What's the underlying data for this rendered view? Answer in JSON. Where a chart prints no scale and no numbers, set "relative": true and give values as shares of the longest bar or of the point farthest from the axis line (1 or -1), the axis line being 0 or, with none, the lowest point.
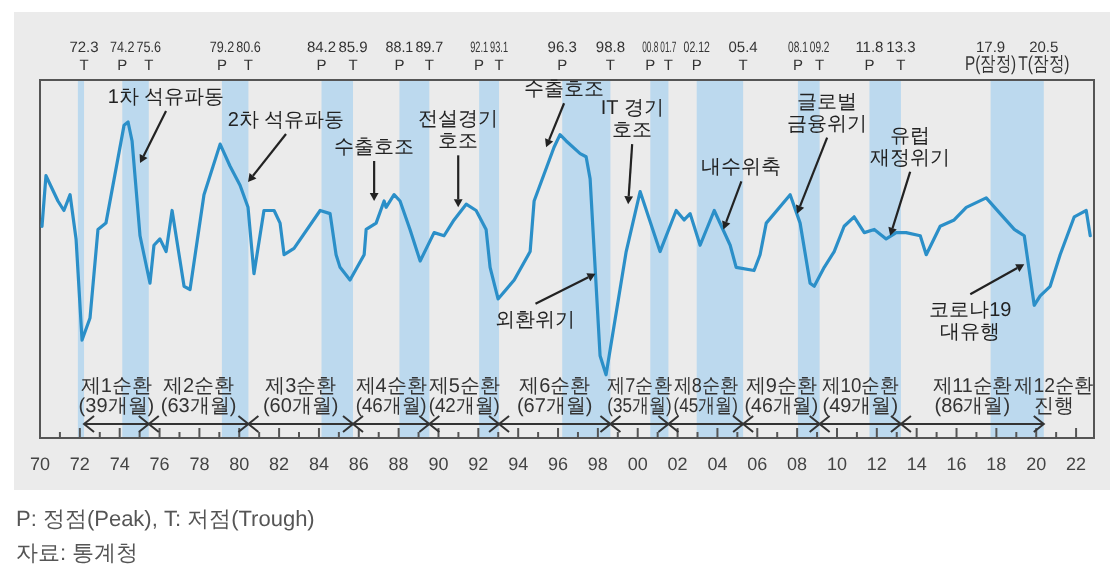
{
  "chart_data": {
    "type": "line",
    "relative": true,
    "xlim": [
      1970,
      2022.9
    ],
    "xticks": [
      {
        "value": 1970,
        "label": "70"
      },
      {
        "value": 1971,
        "label": null
      },
      {
        "value": 1972,
        "label": "72"
      },
      {
        "value": 1973,
        "label": null
      },
      {
        "value": 1974,
        "label": "74"
      },
      {
        "value": 1975,
        "label": null
      },
      {
        "value": 1976,
        "label": "76"
      },
      {
        "value": 1977,
        "label": null
      },
      {
        "value": 1978,
        "label": "78"
      },
      {
        "value": 1979,
        "label": null
      },
      {
        "value": 1980,
        "label": "80"
      },
      {
        "value": 1981,
        "label": null
      },
      {
        "value": 1982,
        "label": "82"
      },
      {
        "value": 1983,
        "label": null
      },
      {
        "value": 1984,
        "label": "84"
      },
      {
        "value": 1985,
        "label": null
      },
      {
        "value": 1986,
        "label": "86"
      },
      {
        "value": 1987,
        "label": null
      },
      {
        "value": 1988,
        "label": "88"
      },
      {
        "value": 1989,
        "label": null
      },
      {
        "value": 1990,
        "label": "90"
      },
      {
        "value": 1991,
        "label": null
      },
      {
        "value": 1992,
        "label": "92"
      },
      {
        "value": 1993,
        "label": null
      },
      {
        "value": 1994,
        "label": "94"
      },
      {
        "value": 1995,
        "label": null
      },
      {
        "value": 1996,
        "label": "96"
      },
      {
        "value": 1997,
        "label": null
      },
      {
        "value": 1998,
        "label": "98"
      },
      {
        "value": 1999,
        "label": null
      },
      {
        "value": 2000,
        "label": "00"
      },
      {
        "value": 2001,
        "label": null
      },
      {
        "value": 2002,
        "label": "02"
      },
      {
        "value": 2003,
        "label": null
      },
      {
        "value": 2004,
        "label": "04"
      },
      {
        "value": 2005,
        "label": null
      },
      {
        "value": 2006,
        "label": "06"
      },
      {
        "value": 2007,
        "label": null
      },
      {
        "value": 2008,
        "label": "08"
      },
      {
        "value": 2009,
        "label": null
      },
      {
        "value": 2010,
        "label": "10"
      },
      {
        "value": 2011,
        "label": null
      },
      {
        "value": 2012,
        "label": "12"
      },
      {
        "value": 2013,
        "label": null
      },
      {
        "value": 2014,
        "label": "14"
      },
      {
        "value": 2015,
        "label": null
      },
      {
        "value": 2016,
        "label": "16"
      },
      {
        "value": 2017,
        "label": null
      },
      {
        "value": 2018,
        "label": "18"
      },
      {
        "value": 2019,
        "label": null
      },
      {
        "value": 2020,
        "label": "20"
      },
      {
        "value": 2021,
        "label": null
      },
      {
        "value": 2022,
        "label": "22"
      }
    ],
    "x": [
      1970.1,
      1970.3,
      1970.9,
      1971.2,
      1971.51,
      1971.81,
      1972.11,
      1972.51,
      1972.91,
      1973.31,
      1974.22,
      1974.42,
      1974.62,
      1975.02,
      1975.22,
      1975.52,
      1975.72,
      1976.02,
      1976.33,
      1976.63,
      1977.23,
      1977.53,
      1978.23,
      1979.04,
      1979.54,
      1980.04,
      1980.44,
      1980.74,
      1981.24,
      1981.75,
      1982.05,
      1982.25,
      1982.75,
      1984.06,
      1984.56,
      1984.86,
      1985.06,
      1985.56,
      1986.27,
      1986.37,
      1986.87,
      1987.27,
      1987.37,
      1987.77,
      1988.07,
      1988.57,
      1989.08,
      1989.78,
      1990.28,
      1990.78,
      1991.39,
      1991.89,
      1992.39,
      1992.59,
      1992.99,
      1993.8,
      1994.6,
      1994.8,
      1995.8,
      1996.1,
      1996.41,
      1997.11,
      1997.41,
      1997.61,
      1998.11,
      1998.41,
      1999.42,
      2000.12,
      2001.12,
      2001.93,
      2002.33,
      2002.63,
      2003.13,
      2003.84,
      2004.64,
      2004.94,
      2005.84,
      2006.14,
      2006.45,
      2007.65,
      2008.15,
      2008.65,
      2008.86,
      2009.36,
      2009.86,
      2010.36,
      2010.86,
      2011.37,
      2011.87,
      2012.47,
      2012.97,
      2013.47,
      2014.18,
      2014.48,
      2015.18,
      2015.88,
      2016.49,
      2017.49,
      2018.19,
      2018.9,
      2019.4,
      2019.9,
      2020.2,
      2020.7,
      2021.2,
      2021.91,
      2022.21,
      2022.51,
      2022.71
    ],
    "series": [
      {
        "color": "#2b8fc8",
        "values": [
          0.67,
          0.83,
          0.75,
          0.72,
          0.77,
          0.63,
          0.31,
          0.38,
          0.66,
          0.68,
          0.99,
          1.0,
          0.94,
          0.64,
          0.58,
          0.49,
          0.61,
          0.63,
          0.59,
          0.72,
          0.48,
          0.47,
          0.77,
          0.93,
          0.86,
          0.8,
          0.73,
          0.52,
          0.72,
          0.72,
          0.68,
          0.58,
          0.6,
          0.72,
          0.71,
          0.58,
          0.54,
          0.5,
          0.58,
          0.66,
          0.68,
          0.75,
          0.73,
          0.77,
          0.75,
          0.66,
          0.56,
          0.65,
          0.64,
          0.69,
          0.74,
          0.72,
          0.66,
          0.54,
          0.44,
          0.5,
          0.59,
          0.75,
          0.92,
          0.96,
          0.94,
          0.9,
          0.89,
          0.82,
          0.26,
          0.2,
          0.59,
          0.78,
          0.59,
          0.72,
          0.69,
          0.71,
          0.61,
          0.72,
          0.61,
          0.54,
          0.53,
          0.58,
          0.68,
          0.77,
          0.68,
          0.49,
          0.48,
          0.54,
          0.59,
          0.67,
          0.7,
          0.65,
          0.66,
          0.63,
          0.65,
          0.65,
          0.64,
          0.58,
          0.67,
          0.69,
          0.73,
          0.76,
          0.71,
          0.66,
          0.64,
          0.42,
          0.45,
          0.48,
          0.58,
          0.7,
          0.71,
          0.72,
          0.64
        ]
      }
    ],
    "bands": [
      {
        "axis": "x",
        "from": 1971.9,
        "to": 1972.21,
        "color": "#bcd9ee"
      },
      {
        "axis": "x",
        "from": 1974.13,
        "to": 1975.46,
        "color": "#bcd9ee"
      },
      {
        "axis": "x",
        "from": 1979.13,
        "to": 1980.46,
        "color": "#bcd9ee"
      },
      {
        "axis": "x",
        "from": 1984.13,
        "to": 1985.71,
        "color": "#bcd9ee"
      },
      {
        "axis": "x",
        "from": 1988.04,
        "to": 1989.54,
        "color": "#bcd9ee"
      },
      {
        "axis": "x",
        "from": 1992.04,
        "to": 1993.04,
        "color": "#bcd9ee"
      },
      {
        "axis": "x",
        "from": 1996.21,
        "to": 1998.63,
        "color": "#bcd9ee"
      },
      {
        "axis": "x",
        "from": 2000.63,
        "to": 2001.54,
        "color": "#bcd9ee"
      },
      {
        "axis": "x",
        "from": 2002.96,
        "to": 2005.29,
        "color": "#bcd9ee"
      },
      {
        "axis": "x",
        "from": 2008.04,
        "to": 2009.13,
        "color": "#bcd9ee"
      },
      {
        "axis": "x",
        "from": 2011.63,
        "to": 2013.21,
        "color": "#bcd9ee"
      },
      {
        "axis": "x",
        "from": 2017.71,
        "to": 2020.38,
        "color": "#bcd9ee"
      }
    ],
    "annotations": [
      "72.3\nT",
      "74.2\nP",
      "75.6\nT",
      "79.2\nP",
      "80.6\nT",
      "84.2\nP",
      "85.9\nT",
      "88.1\nP",
      "89.7\nT",
      "92.1\nP",
      "93.1\nT",
      "96.3\nP",
      "98.8\nT",
      "00.8\nP",
      "01.7\nT",
      "02.12\nP",
      "05.4\nT",
      "08.1\nP",
      "09.2\nT",
      "11.8\nP",
      "13.3\nT",
      "17.9\nP(잠정)",
      "20.5\nT(잠정)",
      {
        "text": "1차 석유파동",
        "x": 1975.02,
        "y": 0.87
      },
      {
        "text": "2차 석유파동",
        "x": 1980.44,
        "y": 0.81
      },
      {
        "text": "수출호조",
        "x": 1986.77,
        "y": 0.75
      },
      {
        "text": "전설경기\n호조",
        "x": 1990.99,
        "y": 0.73
      },
      {
        "text": "수출호조",
        "x": 1995.4,
        "y": 0.92
      },
      {
        "text": "외환위기",
        "x": 1997.88,
        "y": 0.52
      },
      {
        "text": "IT 경기\n호조",
        "x": 1999.52,
        "y": 0.74
      },
      {
        "text": "내수위축",
        "x": 2004.3,
        "y": 0.66
      },
      {
        "text": "글로벌\n금융위기",
        "x": 2008.0,
        "y": 0.71
      },
      {
        "text": "유럽\n재정위기",
        "x": 2012.67,
        "y": 0.64
      },
      {
        "text": "코로나19\n대유행",
        "x": 2019.4,
        "y": 0.55
      },
      "제1순환\n(39개월)",
      "제2순환\n(63개월)",
      "제3순환\n(60개월)",
      "제4순환\n(46개월)",
      "제5순환\n(42개월)",
      "제6순환\n(67개월)",
      "제7순환\n(35개월)",
      "제8순환\n(45개월)",
      "제9순환\n(46개월)",
      "제10순환\n(49개월)",
      "제11순환\n(86개월)",
      "제12순환\n진행",
      "P: 정점(Peak), T: 저점(Trough)",
      "자료: 통계청"
    ]
  }
}
